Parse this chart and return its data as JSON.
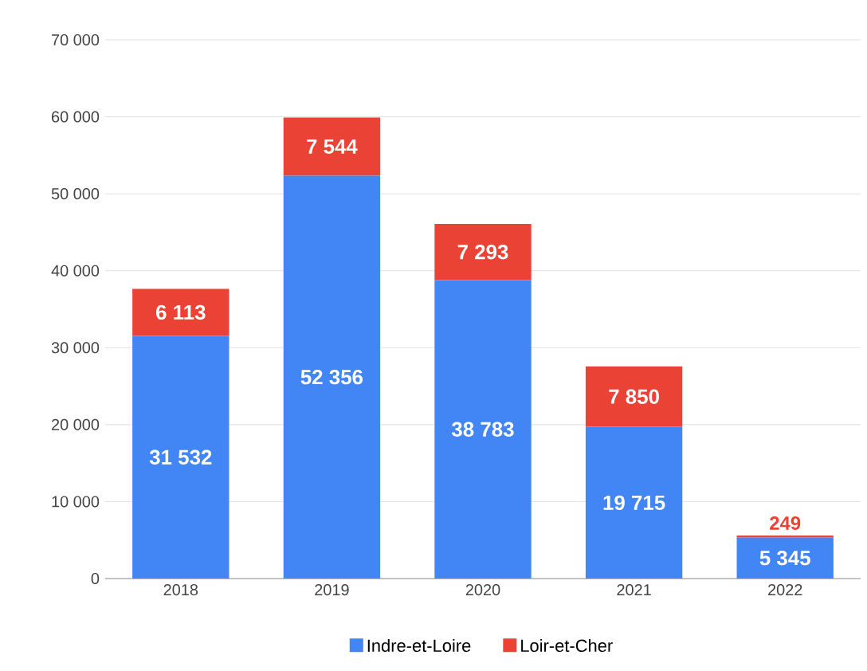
{
  "chart_data": {
    "type": "bar",
    "stacked": true,
    "categories": [
      "2018",
      "2019",
      "2020",
      "2021",
      "2022"
    ],
    "series": [
      {
        "name": "Indre-et-Loire",
        "color": "#4285f4",
        "values": [
          31532,
          52356,
          38783,
          19715,
          5345
        ]
      },
      {
        "name": "Loir-et-Cher",
        "color": "#ea4335",
        "values": [
          6113,
          7544,
          7293,
          7850,
          249
        ]
      }
    ],
    "ylim": [
      0,
      70000
    ],
    "yticks": [
      {
        "value": 0,
        "label": "0"
      },
      {
        "value": 10000,
        "label": "10 000"
      },
      {
        "value": 20000,
        "label": "20 000"
      },
      {
        "value": 30000,
        "label": "30 000"
      },
      {
        "value": 40000,
        "label": "40 000"
      },
      {
        "value": 50000,
        "label": "50 000"
      },
      {
        "value": 60000,
        "label": "60 000"
      },
      {
        "value": 70000,
        "label": "70 000"
      }
    ],
    "grid": "y",
    "legend": "bottom",
    "data_labels": true
  }
}
